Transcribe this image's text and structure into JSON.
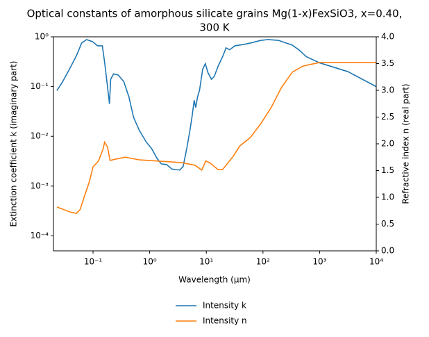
{
  "chart_data": {
    "type": "line",
    "title": [
      "Optical constants of amorphous silicate grains Mg(1-x)FexSiO3, x=0.40,",
      "300 K"
    ],
    "x_label": "Wavelength (μm)",
    "y_label": "Extinction coefficient k (imaginary part)",
    "y2_label": "Refractive index n (real part)",
    "xscale": "log",
    "yscale": "log",
    "xlim": [
      0.02,
      10000
    ],
    "ylim": [
      5e-05,
      1
    ],
    "y2lim": [
      0,
      4
    ],
    "xticks": [
      {
        "value": 0.1,
        "label": "10⁻¹"
      },
      {
        "value": 1,
        "label": "10⁰"
      },
      {
        "value": 10,
        "label": "10¹"
      },
      {
        "value": 100,
        "label": "10²"
      },
      {
        "value": 1000,
        "label": "10³"
      },
      {
        "value": 10000,
        "label": "10⁴"
      }
    ],
    "yticks": [
      {
        "value": 0.0001,
        "label": "10⁻⁴"
      },
      {
        "value": 0.001,
        "label": "10⁻³"
      },
      {
        "value": 0.01,
        "label": "10⁻²"
      },
      {
        "value": 0.1,
        "label": "10⁻¹"
      },
      {
        "value": 1,
        "label": "10⁰"
      }
    ],
    "y2ticks": [
      {
        "value": 0,
        "label": "0.0"
      },
      0.5,
      {
        "value": 1,
        "label": "1.0"
      },
      1.5,
      {
        "value": 2,
        "label": "2.0"
      },
      2.5,
      {
        "value": 3,
        "label": "3.0"
      },
      3.5,
      {
        "value": 4,
        "label": "4.0"
      }
    ],
    "legend": "bottom",
    "series": [
      {
        "name": "Intensity k",
        "color": "#1f77b4",
        "axis": "y",
        "x": [
          0.023,
          0.029,
          0.038,
          0.051,
          0.063,
          0.077,
          0.098,
          0.12,
          0.146,
          0.16,
          0.18,
          0.195,
          0.205,
          0.23,
          0.28,
          0.35,
          0.43,
          0.52,
          0.66,
          0.87,
          1.09,
          1.33,
          1.6,
          2.0,
          2.47,
          3.4,
          3.9,
          4.5,
          5.1,
          5.6,
          6.1,
          6.5,
          7.0,
          7.6,
          8.6,
          9.6,
          10.7,
          12.3,
          13.8,
          16,
          19.4,
          22.3,
          25.8,
          32,
          45,
          60,
          92,
          122,
          186,
          330,
          437,
          580,
          1000,
          3150,
          10000
        ],
        "values": [
          0.083,
          0.125,
          0.22,
          0.42,
          0.75,
          0.88,
          0.8,
          0.66,
          0.66,
          0.31,
          0.1,
          0.045,
          0.14,
          0.18,
          0.17,
          0.125,
          0.062,
          0.024,
          0.013,
          0.0077,
          0.0056,
          0.0037,
          0.0028,
          0.0027,
          0.0022,
          0.0021,
          0.0025,
          0.0056,
          0.0125,
          0.025,
          0.053,
          0.038,
          0.062,
          0.085,
          0.22,
          0.29,
          0.19,
          0.14,
          0.16,
          0.25,
          0.4,
          0.6,
          0.55,
          0.66,
          0.7,
          0.75,
          0.85,
          0.88,
          0.85,
          0.68,
          0.54,
          0.4,
          0.3,
          0.2,
          0.1
        ]
      },
      {
        "name": "Intensity n",
        "color": "#ff7f0e",
        "axis": "y2",
        "x": [
          0.023,
          0.029,
          0.038,
          0.051,
          0.059,
          0.069,
          0.086,
          0.1,
          0.125,
          0.15,
          0.16,
          0.18,
          0.2,
          0.24,
          0.37,
          0.66,
          1.33,
          3.6,
          6.3,
          8.3,
          9.8,
          11.7,
          16,
          19.4,
          22.3,
          30,
          39,
          60,
          92,
          140,
          214,
          330,
          500,
          660,
          1000,
          10000
        ],
        "values": [
          0.82,
          0.78,
          0.73,
          0.7,
          0.77,
          0.99,
          1.29,
          1.57,
          1.68,
          1.9,
          2.03,
          1.94,
          1.69,
          1.71,
          1.75,
          1.7,
          1.68,
          1.65,
          1.6,
          1.51,
          1.68,
          1.64,
          1.52,
          1.52,
          1.6,
          1.77,
          1.96,
          2.12,
          2.38,
          2.68,
          3.06,
          3.34,
          3.45,
          3.48,
          3.52,
          3.52
        ]
      }
    ]
  }
}
